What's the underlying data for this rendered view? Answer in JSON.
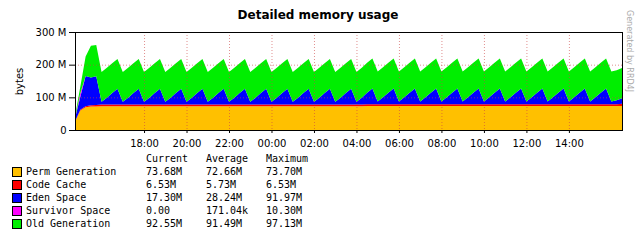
{
  "chart_data": {
    "type": "area",
    "title": "Detailed memory usage",
    "y_label": "bytes",
    "annotation": "Generated by RRD4J",
    "stacked": true,
    "grid": true,
    "legend": "bottom",
    "ylim": [
      0,
      300
    ],
    "yticks": [
      0,
      {
        "value": 100,
        "label": "100 M"
      },
      {
        "value": 200,
        "label": "200 M"
      },
      {
        "value": 300,
        "label": "300 M"
      }
    ],
    "categories": [
      null,
      null,
      null,
      null,
      null,
      null,
      null,
      null,
      null,
      null,
      null,
      null,
      null,
      "18:00",
      null,
      null,
      null,
      null,
      null,
      null,
      null,
      "20:00",
      null,
      null,
      null,
      null,
      null,
      null,
      null,
      "22:00",
      null,
      null,
      null,
      null,
      null,
      null,
      null,
      "00:00",
      null,
      null,
      null,
      null,
      null,
      null,
      null,
      "02:00",
      null,
      null,
      null,
      null,
      null,
      null,
      null,
      "04:00",
      null,
      null,
      null,
      null,
      null,
      null,
      null,
      "06:00",
      null,
      null,
      null,
      null,
      null,
      null,
      null,
      "08:00",
      null,
      null,
      null,
      null,
      null,
      null,
      null,
      "10:00",
      null,
      null,
      null,
      null,
      null,
      null,
      null,
      "12:00",
      null,
      null,
      null,
      null,
      null,
      null,
      null,
      "14:00",
      null,
      null,
      null,
      null,
      null,
      null,
      null,
      null,
      null,
      null
    ],
    "stat_columns": [
      "Current",
      "Average",
      "Maximum"
    ],
    "series": [
      {
        "name": "Perm Generation",
        "color": "#ffc000",
        "stats": [
          "73.68M",
          "72.66M",
          "73.70M"
        ],
        "values": [
          25,
          60,
          70,
          72,
          72.3,
          72.6,
          72.6,
          72.6,
          72.6,
          72.6,
          72.6,
          72.6,
          72.6,
          72.6,
          72.6,
          72.6,
          72.6,
          72.6,
          72.6,
          72.6,
          72.6,
          72.6,
          72.6,
          72.6,
          72.6,
          72.6,
          72.6,
          72.6,
          72.6,
          72.6,
          72.6,
          72.6,
          72.6,
          72.6,
          72.6,
          72.6,
          72.6,
          72.6,
          72.6,
          72.6,
          72.6,
          72.6,
          72.6,
          72.6,
          72.6,
          72.6,
          72.6,
          72.6,
          72.6,
          72.6,
          72.6,
          72.6,
          72.6,
          72.6,
          72.6,
          73.2,
          73.2,
          73.2,
          73.2,
          73.2,
          73.2,
          73.2,
          73.2,
          73.2,
          73.2,
          73.2,
          73.2,
          73.2,
          73.2,
          73.2,
          73.2,
          73.2,
          73.2,
          73.2,
          73.2,
          73.2,
          73.2,
          73.2,
          73.2,
          73.2,
          73.2,
          73.2,
          73.2,
          73.2,
          73.2,
          73.2,
          73.2,
          73.2,
          73.2,
          73.2,
          73.2,
          73.2,
          73.2,
          73.2,
          73.2,
          73.2,
          73.2,
          73.2,
          73.2,
          73.2,
          73.2,
          73.2,
          73.2,
          73.68
        ]
      },
      {
        "name": "Code Cache",
        "color": "#ff0000",
        "stats": [
          "6.53M",
          "5.73M",
          "6.53M"
        ],
        "values": [
          1,
          2,
          3,
          3.5,
          4,
          5.5,
          5.5,
          5.5,
          5.5,
          5.5,
          5.5,
          5.5,
          5.5,
          5.5,
          5.5,
          5.5,
          5.5,
          5.5,
          5.5,
          5.5,
          5.5,
          5.5,
          5.5,
          5.5,
          5.5,
          5.5,
          5.5,
          5.5,
          5.5,
          5.5,
          5.5,
          5.5,
          5.5,
          5.5,
          5.5,
          5.5,
          5.5,
          5.5,
          5.5,
          5.5,
          5.5,
          5.5,
          5.5,
          5.5,
          5.5,
          5.5,
          5.5,
          5.5,
          5.5,
          5.5,
          5.5,
          5.5,
          5.5,
          5.5,
          5.5,
          6,
          6,
          6,
          6,
          6,
          6,
          6,
          6,
          6,
          6,
          6,
          6,
          6,
          6,
          6,
          6,
          6,
          6,
          6,
          6,
          6,
          6,
          6,
          6,
          6,
          6,
          6,
          6,
          6,
          6,
          6,
          6,
          6,
          6,
          6,
          6,
          6,
          6,
          6,
          6,
          6,
          6,
          6,
          6,
          6,
          6,
          6,
          6,
          6.53
        ]
      },
      {
        "name": "Eden Space",
        "color": "#0000ff",
        "stats": [
          "17.30M",
          "28.24M",
          "91.97M"
        ],
        "values": [
          10,
          40,
          91.97,
          85,
          88,
          8,
          21,
          35,
          48,
          8,
          21,
          35,
          48,
          8,
          21,
          35,
          48,
          8,
          21,
          35,
          48,
          8,
          21,
          35,
          48,
          8,
          21,
          35,
          48,
          8,
          21,
          35,
          48,
          8,
          21,
          35,
          48,
          8,
          21,
          35,
          48,
          8,
          21,
          35,
          48,
          8,
          21,
          35,
          48,
          8,
          21,
          35,
          48,
          8,
          21,
          35,
          48,
          8,
          21,
          35,
          48,
          8,
          21,
          35,
          48,
          8,
          21,
          35,
          48,
          8,
          21,
          35,
          48,
          8,
          21,
          35,
          48,
          8,
          21,
          35,
          48,
          8,
          21,
          35,
          48,
          8,
          21,
          35,
          48,
          8,
          21,
          35,
          48,
          8,
          21,
          35,
          48,
          8,
          21,
          35,
          48,
          8,
          12,
          17.3
        ]
      },
      {
        "name": "Survivor Space",
        "color": "#ff00ff",
        "stats": [
          "0.00",
          "171.04k",
          "10.30M"
        ],
        "values": [
          0,
          10.3,
          0,
          0,
          0,
          0,
          0,
          0,
          0,
          0,
          0,
          0,
          0,
          0,
          0,
          0,
          0,
          0,
          0,
          0,
          0,
          0,
          0,
          0,
          0,
          0,
          0,
          0,
          0,
          0,
          0,
          0,
          0,
          0,
          0,
          0,
          0,
          0,
          0,
          0,
          0,
          0,
          0,
          0,
          0,
          0,
          0,
          0,
          0,
          0,
          0,
          0,
          0,
          0,
          0,
          0,
          0,
          0,
          0,
          0,
          0,
          0,
          0,
          0,
          0,
          0,
          0,
          0,
          0,
          0,
          0,
          0,
          0,
          0,
          0,
          0,
          0,
          0,
          0,
          0,
          0,
          0,
          0,
          0,
          0,
          0,
          0,
          0,
          0,
          0,
          0,
          0,
          0,
          0,
          0,
          0,
          0,
          0,
          0,
          0,
          0,
          0,
          0,
          0
        ]
      },
      {
        "name": "Old Generation",
        "color": "#00ee00",
        "stats": [
          "92.55M",
          "91.49M",
          "97.13M"
        ],
        "values": [
          5,
          20,
          60,
          97.13,
          96,
          91.2,
          91.2,
          91.2,
          91.2,
          91.2,
          91.2,
          91.2,
          91.2,
          91.2,
          91.2,
          91.2,
          91.2,
          91.2,
          91.2,
          91.2,
          91.2,
          91.2,
          91.2,
          91.2,
          91.2,
          91.2,
          91.2,
          91.2,
          91.2,
          91.2,
          91.2,
          91.2,
          91.2,
          91.2,
          91.2,
          91.2,
          91.2,
          91.2,
          91.2,
          91.2,
          91.2,
          91.2,
          91.2,
          91.2,
          91.2,
          91.2,
          91.2,
          91.2,
          91.2,
          91.2,
          91.2,
          91.2,
          91.2,
          91.2,
          91.2,
          91.8,
          91.8,
          91.8,
          91.8,
          91.8,
          91.8,
          91.8,
          91.8,
          91.8,
          91.8,
          91.8,
          91.8,
          91.8,
          91.8,
          91.8,
          91.8,
          91.8,
          91.8,
          91.8,
          91.8,
          91.8,
          91.8,
          91.8,
          91.8,
          91.8,
          91.8,
          91.8,
          91.8,
          91.8,
          91.8,
          91.8,
          91.8,
          91.8,
          91.8,
          91.8,
          91.8,
          91.8,
          91.8,
          91.8,
          91.8,
          91.8,
          91.8,
          91.8,
          91.8,
          91.8,
          91.8,
          91.8,
          91.8,
          92.55
        ]
      }
    ]
  }
}
